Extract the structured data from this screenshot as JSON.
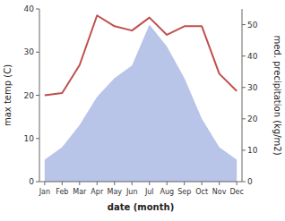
{
  "chart_data": {
    "type": "line",
    "x_label": "date (month)",
    "y_label": "max temp (C)",
    "y2_label": "med. precipitation (kg/m2)",
    "categories": [
      "Jan",
      "Feb",
      "Mar",
      "Apr",
      "May",
      "Jun",
      "Jul",
      "Aug",
      "Sep",
      "Oct",
      "Nov",
      "Dec"
    ],
    "series": [
      {
        "type": "area",
        "axis": "y2",
        "color": "#b8c4e8",
        "values": [
          7,
          11,
          18,
          27,
          33,
          37,
          50,
          43,
          33,
          20,
          11,
          7
        ]
      },
      {
        "type": "line",
        "color": "#c0504d",
        "values": [
          20,
          20.5,
          27,
          38.5,
          36,
          35,
          38,
          34,
          36,
          36,
          25,
          21
        ]
      }
    ],
    "ylim": [
      0,
      40
    ],
    "yticks": [
      0,
      10,
      20,
      30,
      40
    ],
    "y2lim": [
      0,
      55
    ],
    "y2ticks": [
      0,
      10,
      20,
      30,
      40,
      50
    ],
    "grid": false
  }
}
